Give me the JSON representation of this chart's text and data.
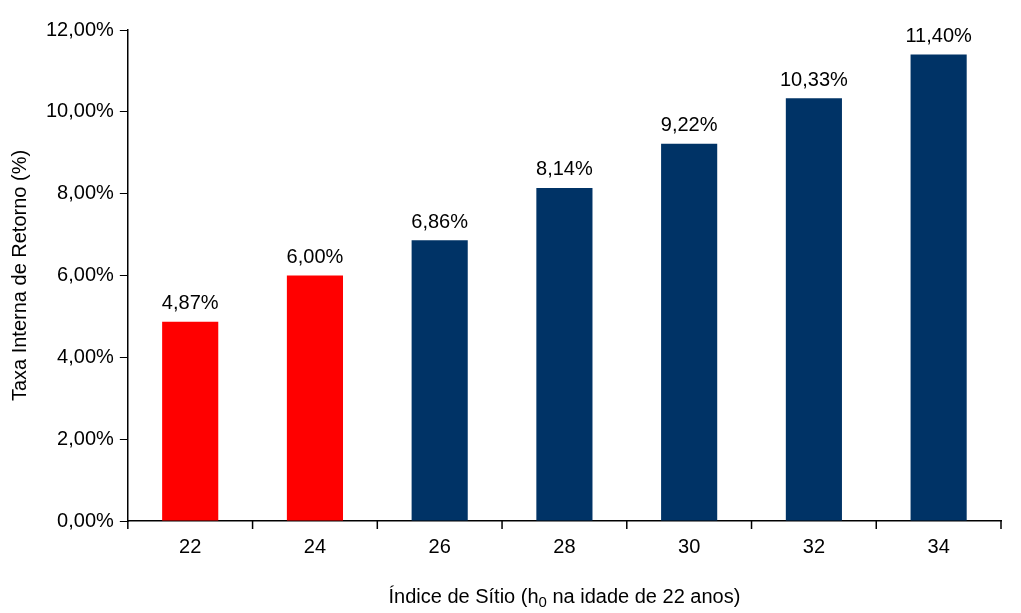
{
  "chart_data": {
    "type": "bar",
    "xlabel": "Índice de Sítio (h$_{0}$ na idade de 22 anos)",
    "ylabel": "Taxa Interna de Retorno (%)",
    "categories": [
      "22",
      "24",
      "26",
      "28",
      "30",
      "32",
      "34"
    ],
    "values": [
      4.87,
      6.0,
      6.86,
      8.14,
      9.22,
      10.33,
      11.4
    ],
    "colors": [
      "#ff0000",
      "#ff0000",
      "#003366",
      "#003366",
      "#003366",
      "#003366",
      "#003366"
    ],
    "value_labels": [
      "4,87%",
      "6,00%",
      "6,86%",
      "8,14%",
      "9,22%",
      "10,33%",
      "11,40%"
    ],
    "ylim": [
      0,
      12
    ],
    "yticks": [
      {
        "value": 0,
        "label": "0,00%"
      },
      {
        "value": 2,
        "label": "2,00%"
      },
      {
        "value": 4,
        "label": "4,00%"
      },
      {
        "value": 6,
        "label": "6,00%"
      },
      {
        "value": 8,
        "label": "8,00%"
      },
      {
        "value": 10,
        "label": "10,00%"
      },
      {
        "value": 12,
        "label": "12,00%"
      }
    ],
    "grid": false,
    "legend": false
  }
}
